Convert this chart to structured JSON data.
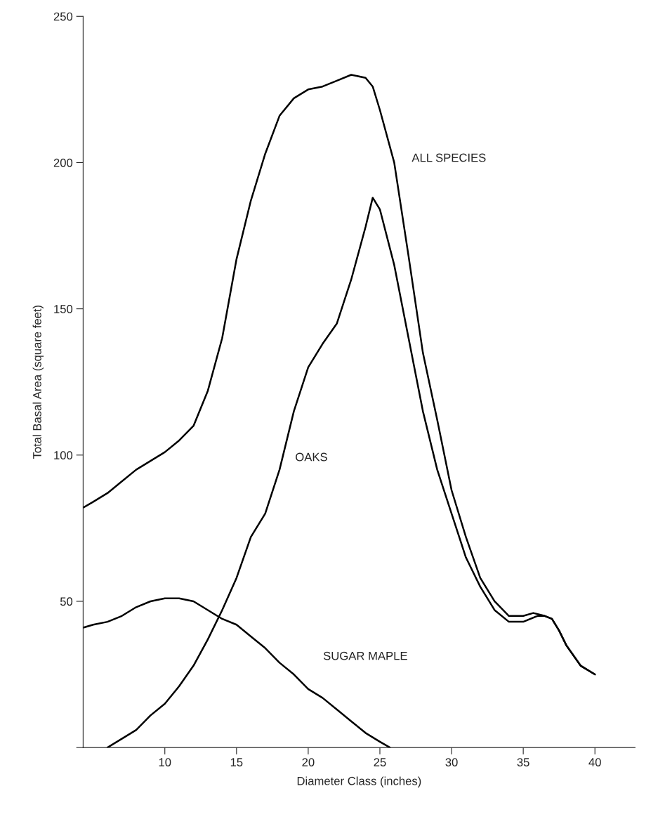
{
  "chart_data": {
    "type": "line",
    "xlabel": "Diameter Class (inches)",
    "ylabel": "Total Basal Area (square feet)",
    "xlim": [
      4.3,
      42.8
    ],
    "xticks": [
      10,
      15,
      20,
      25,
      30,
      35,
      40
    ],
    "ylim": [
      0,
      250
    ],
    "yticks": [
      {
        "value": 0,
        "label": null
      },
      50,
      100,
      150,
      200,
      250
    ],
    "grid": false,
    "legend": false,
    "marker": "none",
    "line_style": "solid",
    "series": [
      {
        "name": "ALL SPECIES",
        "color": "#000000",
        "x": [
          4.3,
          5,
          6,
          7,
          8,
          9,
          10,
          11,
          12,
          13,
          14,
          15,
          16,
          17,
          18,
          19,
          20,
          21,
          22,
          23,
          24,
          24.5,
          25,
          26,
          27,
          28,
          29,
          30,
          31,
          32,
          33,
          34,
          35,
          35.7,
          36.5,
          37,
          37.5,
          38,
          39,
          40
        ],
        "values": [
          82,
          84,
          87,
          91,
          95,
          98,
          101,
          105,
          110,
          122,
          140,
          167,
          187,
          203,
          216,
          222,
          225,
          226,
          228,
          230,
          229,
          226,
          218,
          200,
          168,
          135,
          112,
          88,
          72,
          58,
          50,
          45,
          45,
          46,
          45,
          44,
          40,
          35,
          28,
          25
        ]
      },
      {
        "name": "OAKS",
        "color": "#000000",
        "x": [
          6,
          7,
          8,
          9,
          10,
          11,
          12,
          13,
          14,
          15,
          16,
          17,
          18,
          19,
          20,
          21,
          22,
          23,
          24,
          24.5,
          25,
          26,
          27,
          28,
          29,
          30,
          31,
          32,
          33,
          34,
          35,
          36,
          36.5,
          37,
          37.5,
          38,
          39,
          40
        ],
        "values": [
          0,
          3,
          6,
          11,
          15,
          21,
          28,
          37,
          47,
          58,
          72,
          80,
          95,
          115,
          130,
          138,
          145,
          160,
          178,
          188,
          184,
          165,
          140,
          115,
          95,
          80,
          65,
          55,
          47,
          43,
          43,
          45,
          45,
          44,
          40,
          35,
          28,
          25
        ]
      },
      {
        "name": "SUGAR MAPLE",
        "color": "#000000",
        "x": [
          4.3,
          5,
          6,
          7,
          8,
          9,
          10,
          11,
          12,
          13,
          14,
          15,
          16,
          17,
          18,
          19,
          20,
          21,
          22,
          23,
          24,
          25,
          25.7
        ],
        "values": [
          41,
          42,
          43,
          45,
          48,
          50,
          51,
          51,
          50,
          47,
          44,
          42,
          38,
          34,
          29,
          25,
          20,
          17,
          13,
          9,
          5,
          2,
          0
        ]
      }
    ]
  }
}
